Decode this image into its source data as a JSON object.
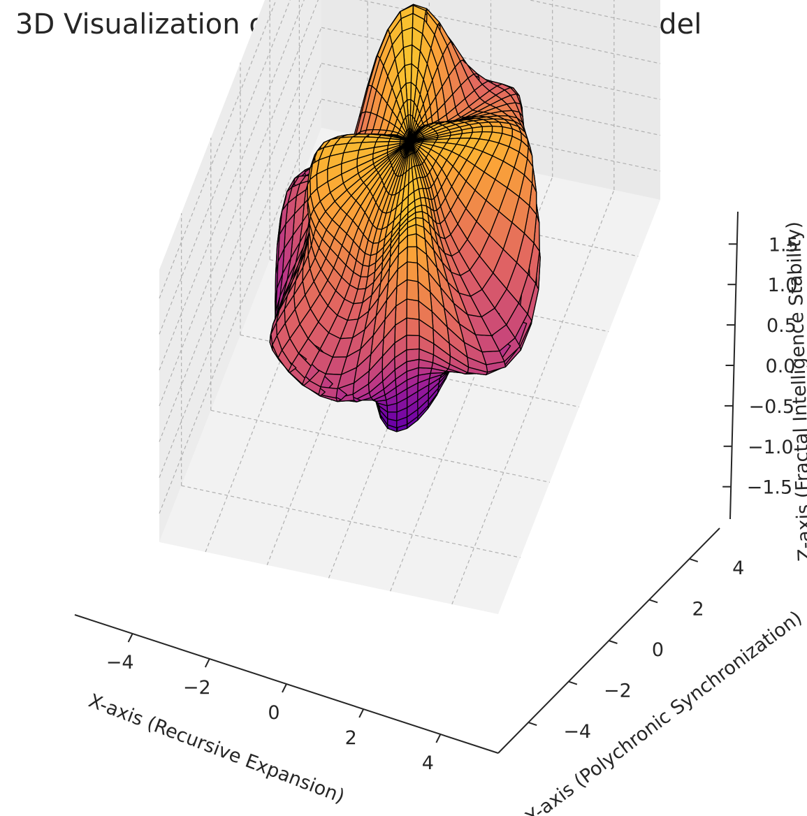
{
  "chart_data": {
    "type": "surface3d",
    "title": "3D Visualization of Optimized Recursive AI Model",
    "xlabel": "X-axis (Recursive Expansion)",
    "ylabel": "Y-axis (Polychronic Synchronization)",
    "zlabel": "Z-axis (Fractal Intelligence Stability)",
    "x_ticks": [
      "−4",
      "−2",
      "0",
      "2",
      "4"
    ],
    "y_ticks": [
      "−4",
      "−2",
      "0",
      "2",
      "4"
    ],
    "z_ticks": [
      "−1.5",
      "−1.0",
      "−0.5",
      "0.0",
      "0.5",
      "1.0",
      "1.5"
    ],
    "x_values": [
      -4,
      -2,
      0,
      2,
      4
    ],
    "y_values": [
      -4,
      -2,
      0,
      2,
      4
    ],
    "z_values": [
      -1.5,
      -1.0,
      -0.5,
      0.0,
      0.5,
      1.0,
      1.5
    ],
    "xlim": [
      -5.5,
      5.5
    ],
    "ylim": [
      -5.5,
      5.5
    ],
    "zlim": [
      -1.9,
      1.9
    ],
    "colormap": "plasma",
    "colormap_stops": [
      "#0d0887",
      "#6a00a8",
      "#b12a90",
      "#e16462",
      "#fca636",
      "#f0f921"
    ],
    "grid": true,
    "pane_color": "#f2f2f2",
    "edge_color": "#000000"
  }
}
